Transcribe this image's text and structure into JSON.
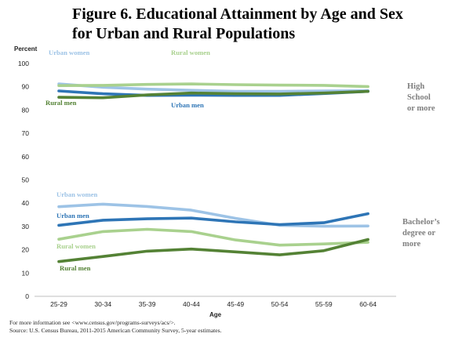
{
  "title": "Figure 6.  Educational Attainment by Age and Sex\nfor Urban and Rural Populations",
  "footnotes": [
    "For more information see <www.census.gov/programs-surveys/acs/>.",
    "Source: U.S. Census Bureau, 2011-2015 American Community Survey, 5-year estimates."
  ],
  "chart_data": {
    "type": "line",
    "xlabel": "Age",
    "ylabel": "Percent",
    "ylim": [
      0,
      100
    ],
    "yticks": [
      0,
      10,
      20,
      30,
      40,
      50,
      60,
      70,
      80,
      90,
      100
    ],
    "grid": false,
    "categories": [
      "25-29",
      "30-34",
      "35-39",
      "40-44",
      "45-49",
      "50-54",
      "55-59",
      "60-64"
    ],
    "groups": [
      {
        "label": "High\nSchool\nor more",
        "series": [
          {
            "name": "Urban women",
            "color": "#9dc3e6",
            "values": [
              91.2,
              89.8,
              89.0,
              88.5,
              88.0,
              88.0,
              88.2,
              88.3
            ],
            "label_pos": "top-left"
          },
          {
            "name": "Rural women",
            "color": "#a9d18e",
            "values": [
              90.5,
              90.6,
              91.0,
              91.2,
              90.9,
              90.7,
              90.6,
              90.1
            ],
            "label_pos": "top-middle"
          },
          {
            "name": "Urban men",
            "color": "#2e75b6",
            "values": [
              88.2,
              87.0,
              86.3,
              86.4,
              86.3,
              86.3,
              87.1,
              88.0
            ],
            "label_pos": "below-middle"
          },
          {
            "name": "Rural men",
            "color": "#548235",
            "values": [
              85.5,
              85.3,
              86.5,
              87.3,
              87.0,
              86.9,
              87.3,
              88.0
            ],
            "label_pos": "below-left"
          }
        ]
      },
      {
        "label": "Bachelor’s\ndegree or\nmore",
        "series": [
          {
            "name": "Urban women",
            "color": "#9dc3e6",
            "values": [
              38.5,
              39.6,
              38.6,
              37.0,
              33.5,
              30.5,
              30.1,
              30.2
            ],
            "label_pos": "above-left"
          },
          {
            "name": "Urban men",
            "color": "#2e75b6",
            "values": [
              30.5,
              32.7,
              33.3,
              33.6,
              32.0,
              30.8,
              31.6,
              35.5
            ],
            "label_pos": "above-left"
          },
          {
            "name": "Rural women",
            "color": "#a9d18e",
            "values": [
              24.5,
              27.8,
              28.8,
              27.8,
              24.2,
              22.0,
              22.5,
              23.2
            ],
            "label_pos": "below-left"
          },
          {
            "name": "Rural men",
            "color": "#548235",
            "values": [
              14.9,
              17.1,
              19.4,
              20.3,
              19.1,
              17.8,
              19.6,
              24.4
            ],
            "label_pos": "below-left"
          }
        ]
      }
    ]
  }
}
